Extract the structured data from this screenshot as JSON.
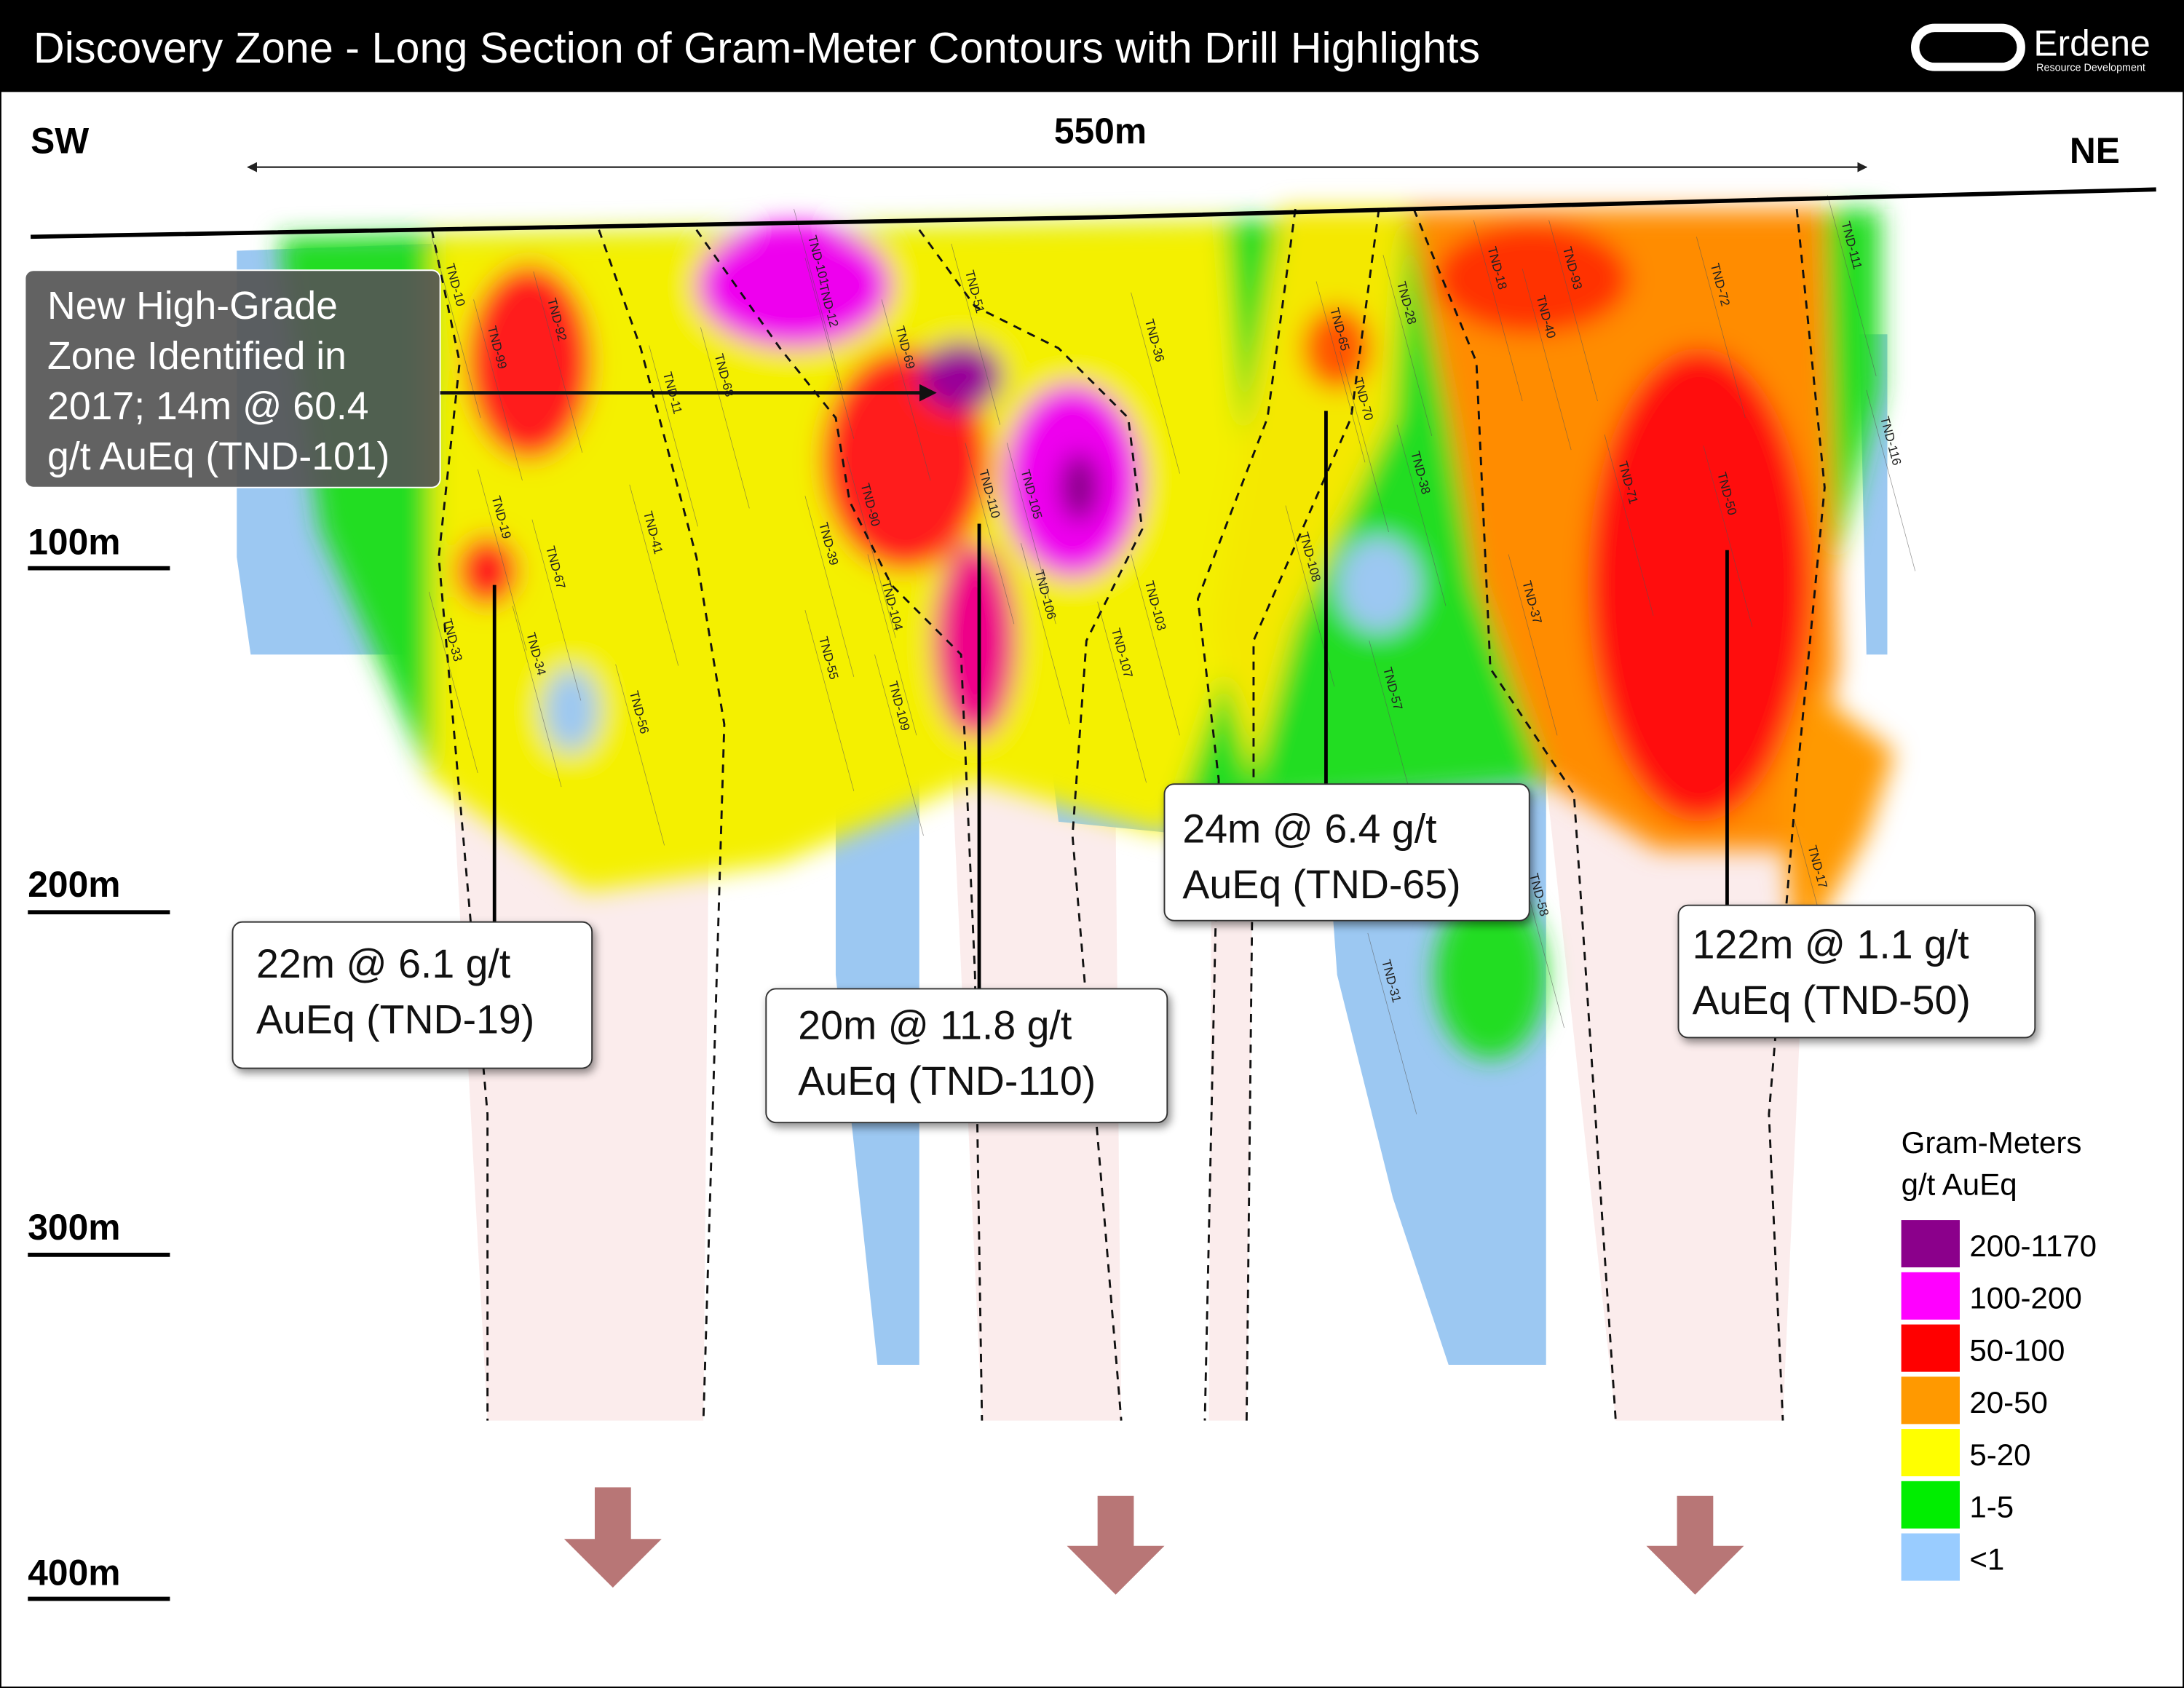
{
  "header": {
    "title": "Discovery Zone - Long Section of Gram-Meter Contours with Drill Highlights",
    "logo_name": "Erdene",
    "logo_sub": "Resource Development"
  },
  "section": {
    "left_label": "SW",
    "right_label": "NE",
    "width_label": "550m",
    "depth_labels": [
      "100m",
      "200m",
      "300m",
      "400m"
    ]
  },
  "note": {
    "lines": [
      "New High-Grade",
      "Zone Identified in",
      "2017; 14m @ 60.4",
      "g/t AuEq (TND-101)"
    ]
  },
  "callouts": [
    {
      "lines": [
        "22m @ 6.1 g/t",
        "AuEq (TND-19)"
      ]
    },
    {
      "lines": [
        "20m @ 11.8 g/t",
        "AuEq (TND-110)"
      ]
    },
    {
      "lines": [
        "24m @ 6.4 g/t",
        "AuEq (TND-65)"
      ]
    },
    {
      "lines": [
        "122m @ 1.1 g/t",
        "AuEq (TND-50)"
      ]
    }
  ],
  "drill_holes": [
    "TND-10",
    "TND-99",
    "TND-92",
    "TND-11",
    "TND-68",
    "TND-101",
    "TND-12",
    "TND-69",
    "TND-51",
    "TND-36",
    "TND-65",
    "TND-70",
    "TND-28",
    "TND-18",
    "TND-93",
    "TND-40",
    "TND-72",
    "TND-111",
    "TND-116",
    "TND-19",
    "TND-67",
    "TND-41",
    "TND-39",
    "TND-90",
    "TND-110",
    "TND-105",
    "TND-106",
    "TND-103",
    "TND-104",
    "TND-108",
    "TND-38",
    "TND-71",
    "TND-50",
    "TND-37",
    "TND-33",
    "TND-34",
    "TND-56",
    "TND-55",
    "TND-109",
    "TND-107",
    "TND-57",
    "TND-17",
    "TND-58",
    "TND-31"
  ],
  "legend": {
    "title_lines": [
      "Gram-Meters",
      "g/t AuEq"
    ],
    "items": [
      {
        "label": "200-1170",
        "color": "#8b008b"
      },
      {
        "label": "100-200",
        "color": "#ff00ff"
      },
      {
        "label": "50-100",
        "color": "#ff0000"
      },
      {
        "label": "20-50",
        "color": "#ff9900"
      },
      {
        "label": "5-20",
        "color": "#ffff00"
      },
      {
        "label": "1-5",
        "color": "#00ee00"
      },
      {
        "label": "<1",
        "color": "#99ccff"
      }
    ]
  }
}
